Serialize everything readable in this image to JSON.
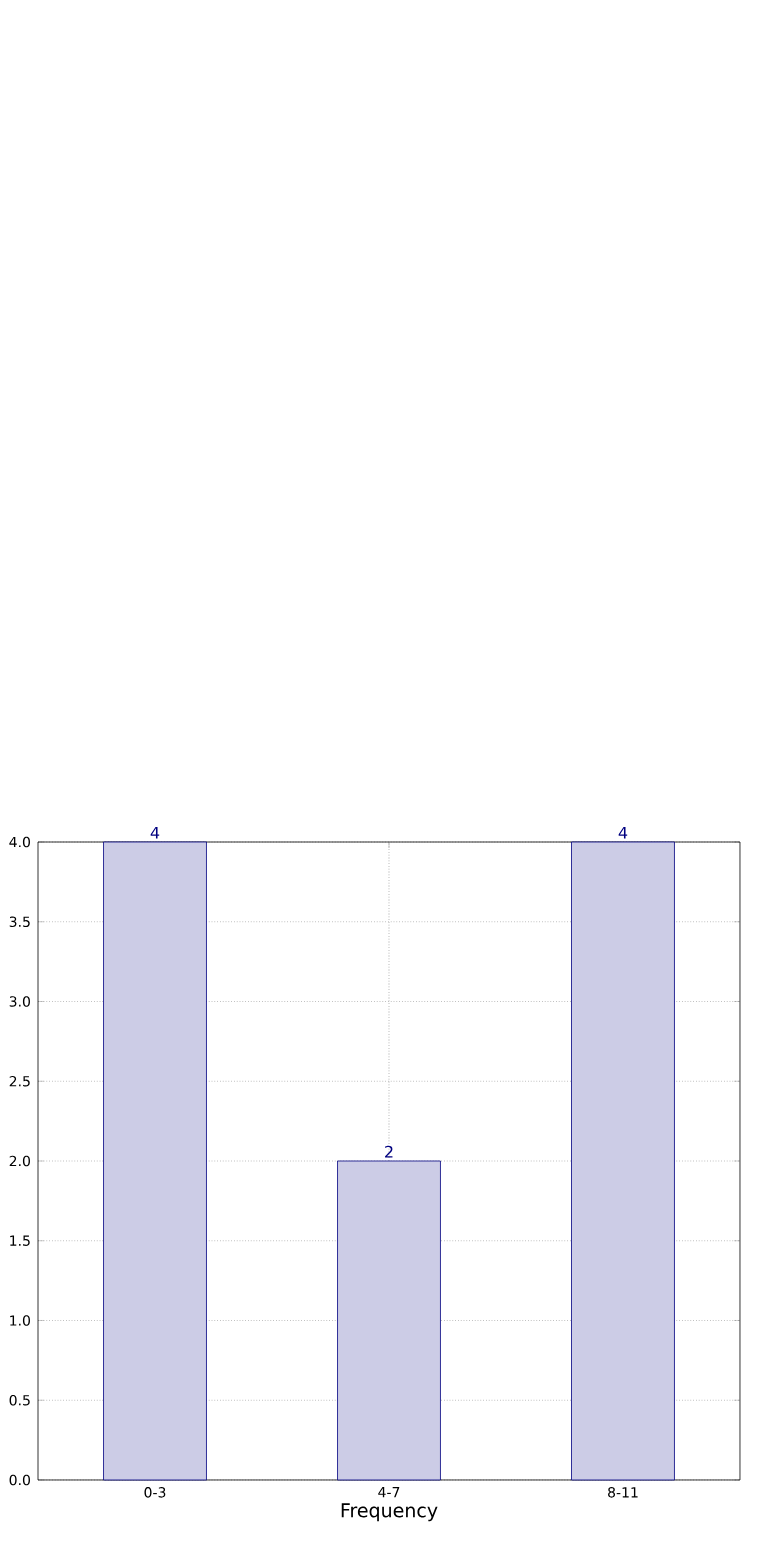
{
  "chart_data": {
    "type": "bar",
    "xlabel": "Frequency",
    "categories": [
      "0-3",
      "4-7",
      "8-11"
    ],
    "values": [
      4,
      2,
      4
    ],
    "color": "#cccce6",
    "ylim": [
      0,
      4
    ],
    "yticks": [
      {
        "value": 0,
        "label": "0.0"
      },
      {
        "value": 0.5,
        "label": "0.5"
      },
      {
        "value": 1,
        "label": "1.0"
      },
      {
        "value": 1.5,
        "label": "1.5"
      },
      {
        "value": 2,
        "label": "2.0"
      },
      {
        "value": 2.5,
        "label": "2.5"
      },
      {
        "value": 3,
        "label": "3.0"
      },
      {
        "value": 3.5,
        "label": "3.5"
      },
      {
        "value": 4,
        "label": "4.0"
      }
    ],
    "grid": true,
    "data_labels": true
  }
}
